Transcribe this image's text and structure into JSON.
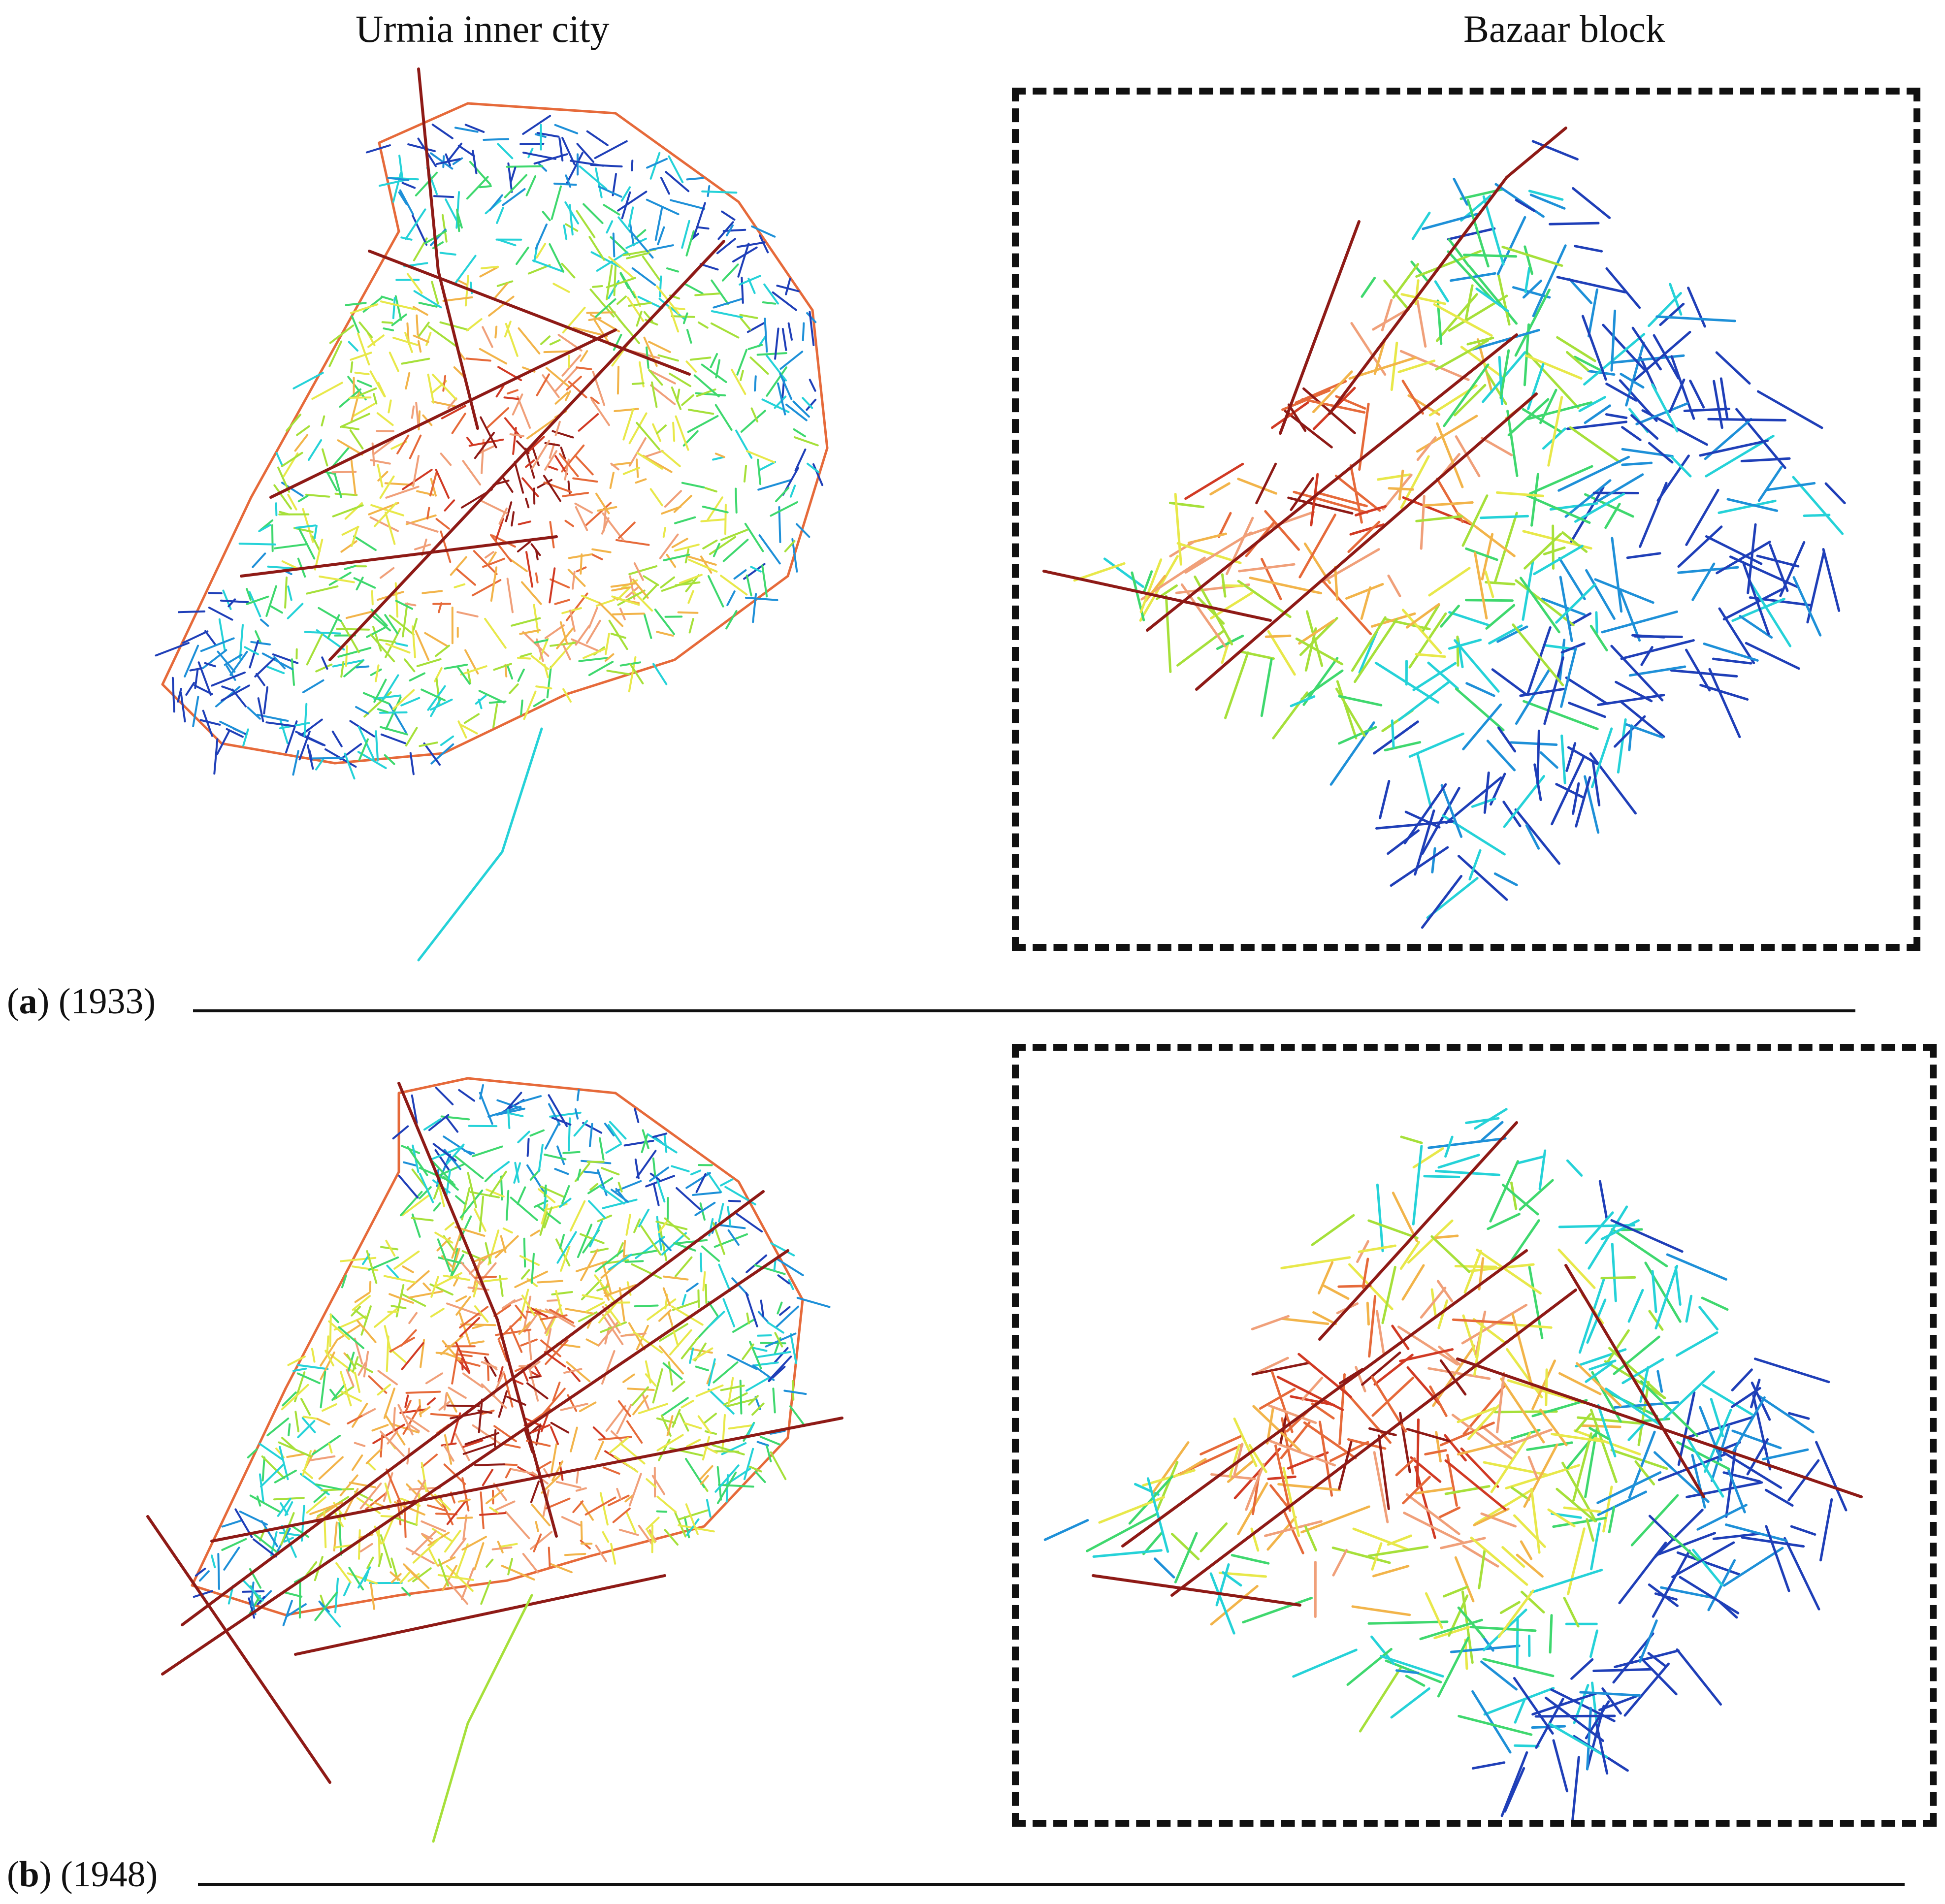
{
  "column_titles": {
    "left": "Urmia inner city",
    "right": "Bazaar block"
  },
  "panels": [
    {
      "letter": "a",
      "year": "(1933)"
    },
    {
      "letter": "b",
      "year": "(1948)"
    }
  ],
  "segment_color_scale": [
    "#1f3fb8",
    "#1e90d8",
    "#25d2d8",
    "#3fd86e",
    "#a6e03a",
    "#e8e84a",
    "#f2b44a",
    "#f0a07a",
    "#e66a3a",
    "#d13a24",
    "#8e1a16"
  ]
}
